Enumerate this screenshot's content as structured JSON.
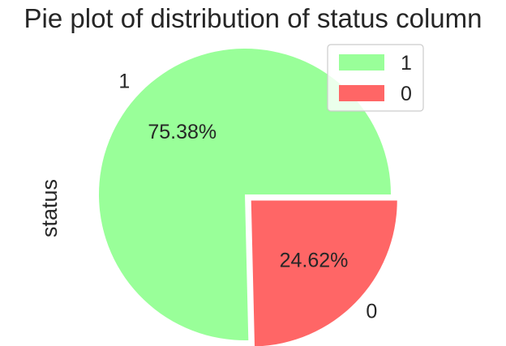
{
  "chart_data": {
    "type": "pie",
    "title": "Pie plot of distribution of status column",
    "ylabel": "status",
    "slices": [
      {
        "label": "1",
        "value": 75.38,
        "pct_label": "75.38%",
        "color": "#99ff99"
      },
      {
        "label": "0",
        "value": 24.62,
        "pct_label": "24.62%",
        "color": "#ff6666"
      }
    ],
    "legend": {
      "placement": "top-right",
      "entries": [
        "1",
        "0"
      ]
    }
  }
}
